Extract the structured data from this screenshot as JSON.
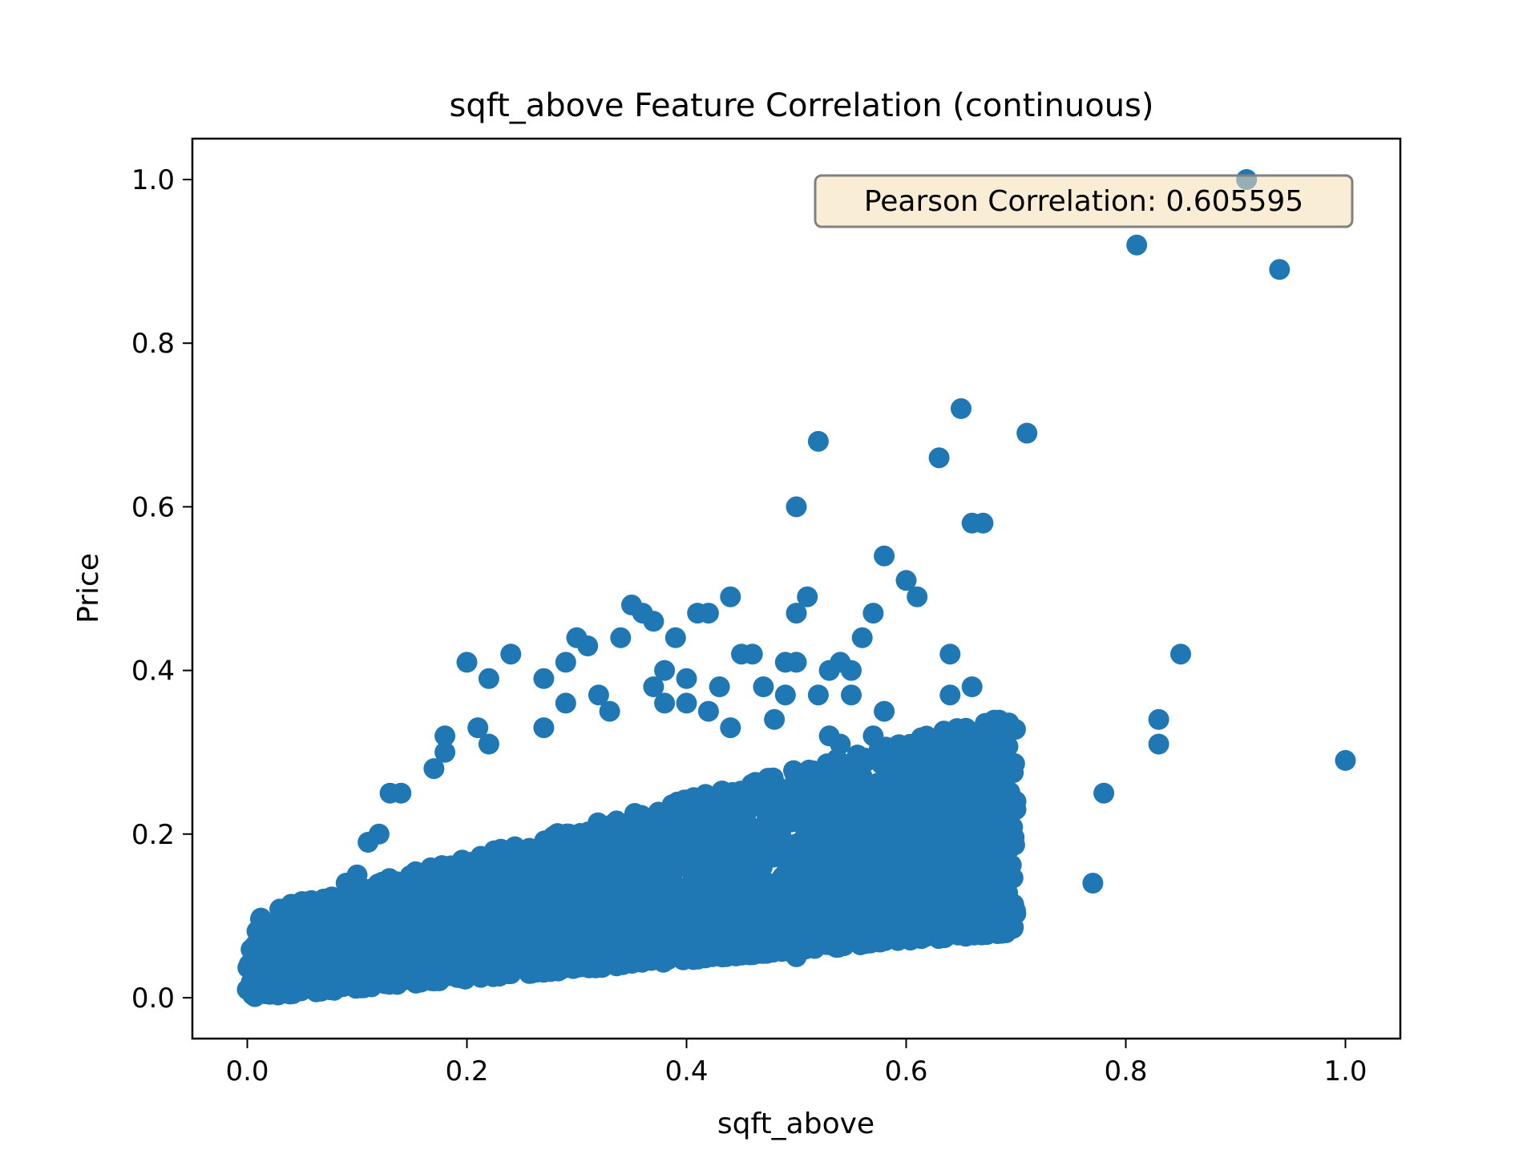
{
  "chart_data": {
    "type": "scatter",
    "title": "sqft_above Feature Correlation (continuous)",
    "xlabel": "sqft_above",
    "ylabel": "Price",
    "xlim": [
      -0.05,
      1.05
    ],
    "ylim": [
      -0.05,
      1.05
    ],
    "xticks": [
      "0.0",
      "0.2",
      "0.4",
      "0.6",
      "0.8",
      "1.0"
    ],
    "yticks": [
      "0.0",
      "0.2",
      "0.4",
      "0.6",
      "0.8",
      "1.0"
    ],
    "grid": false,
    "annotation": "Pearson Correlation: 0.605595",
    "annotation_position": "top-right",
    "marker_color": "#1f77b4",
    "annotation_fill": "#f5deb3",
    "series": [
      {
        "points": [
          [
            0.0,
            0.01
          ],
          [
            0.02,
            0.02
          ],
          [
            0.03,
            0.09
          ],
          [
            0.05,
            0.1
          ],
          [
            0.09,
            0.14
          ],
          [
            0.1,
            0.15
          ],
          [
            0.11,
            0.19
          ],
          [
            0.12,
            0.2
          ],
          [
            0.13,
            0.25
          ],
          [
            0.14,
            0.25
          ],
          [
            0.17,
            0.28
          ],
          [
            0.18,
            0.3
          ],
          [
            0.18,
            0.32
          ],
          [
            0.2,
            0.41
          ],
          [
            0.21,
            0.33
          ],
          [
            0.22,
            0.31
          ],
          [
            0.22,
            0.39
          ],
          [
            0.24,
            0.42
          ],
          [
            0.27,
            0.39
          ],
          [
            0.27,
            0.33
          ],
          [
            0.29,
            0.41
          ],
          [
            0.29,
            0.36
          ],
          [
            0.3,
            0.44
          ],
          [
            0.31,
            0.43
          ],
          [
            0.32,
            0.37
          ],
          [
            0.33,
            0.35
          ],
          [
            0.34,
            0.44
          ],
          [
            0.35,
            0.48
          ],
          [
            0.36,
            0.47
          ],
          [
            0.37,
            0.46
          ],
          [
            0.37,
            0.38
          ],
          [
            0.38,
            0.4
          ],
          [
            0.38,
            0.36
          ],
          [
            0.39,
            0.44
          ],
          [
            0.4,
            0.39
          ],
          [
            0.4,
            0.36
          ],
          [
            0.41,
            0.47
          ],
          [
            0.42,
            0.47
          ],
          [
            0.42,
            0.35
          ],
          [
            0.43,
            0.38
          ],
          [
            0.44,
            0.33
          ],
          [
            0.44,
            0.49
          ],
          [
            0.45,
            0.42
          ],
          [
            0.46,
            0.42
          ],
          [
            0.47,
            0.38
          ],
          [
            0.48,
            0.34
          ],
          [
            0.49,
            0.41
          ],
          [
            0.49,
            0.37
          ],
          [
            0.5,
            0.41
          ],
          [
            0.5,
            0.47
          ],
          [
            0.5,
            0.6
          ],
          [
            0.5,
            0.05
          ],
          [
            0.51,
            0.49
          ],
          [
            0.52,
            0.68
          ],
          [
            0.52,
            0.37
          ],
          [
            0.53,
            0.4
          ],
          [
            0.53,
            0.32
          ],
          [
            0.54,
            0.31
          ],
          [
            0.54,
            0.41
          ],
          [
            0.55,
            0.37
          ],
          [
            0.55,
            0.4
          ],
          [
            0.56,
            0.27
          ],
          [
            0.56,
            0.44
          ],
          [
            0.57,
            0.47
          ],
          [
            0.57,
            0.32
          ],
          [
            0.57,
            0.07
          ],
          [
            0.58,
            0.54
          ],
          [
            0.58,
            0.35
          ],
          [
            0.6,
            0.11
          ],
          [
            0.6,
            0.51
          ],
          [
            0.61,
            0.49
          ],
          [
            0.61,
            0.2
          ],
          [
            0.61,
            0.16
          ],
          [
            0.63,
            0.2
          ],
          [
            0.63,
            0.21
          ],
          [
            0.63,
            0.66
          ],
          [
            0.64,
            0.42
          ],
          [
            0.64,
            0.37
          ],
          [
            0.64,
            0.31
          ],
          [
            0.64,
            0.16
          ],
          [
            0.65,
            0.72
          ],
          [
            0.65,
            0.25
          ],
          [
            0.66,
            0.38
          ],
          [
            0.66,
            0.58
          ],
          [
            0.67,
            0.58
          ],
          [
            0.67,
            0.23
          ],
          [
            0.68,
            0.28
          ],
          [
            0.68,
            0.2
          ],
          [
            0.7,
            0.23
          ],
          [
            0.7,
            0.24
          ],
          [
            0.71,
            0.69
          ],
          [
            0.77,
            0.14
          ],
          [
            0.78,
            0.25
          ],
          [
            0.81,
            0.92
          ],
          [
            0.83,
            0.34
          ],
          [
            0.83,
            0.31
          ],
          [
            0.85,
            0.42
          ],
          [
            0.91,
            1.0
          ],
          [
            0.94,
            0.89
          ],
          [
            1.0,
            0.29
          ]
        ],
        "dense_cluster": {
          "x": [
            0.0,
            0.7
          ],
          "y_lower": [
            0.0,
            0.08
          ],
          "y_upper": [
            0.1,
            0.35
          ]
        }
      }
    ]
  }
}
